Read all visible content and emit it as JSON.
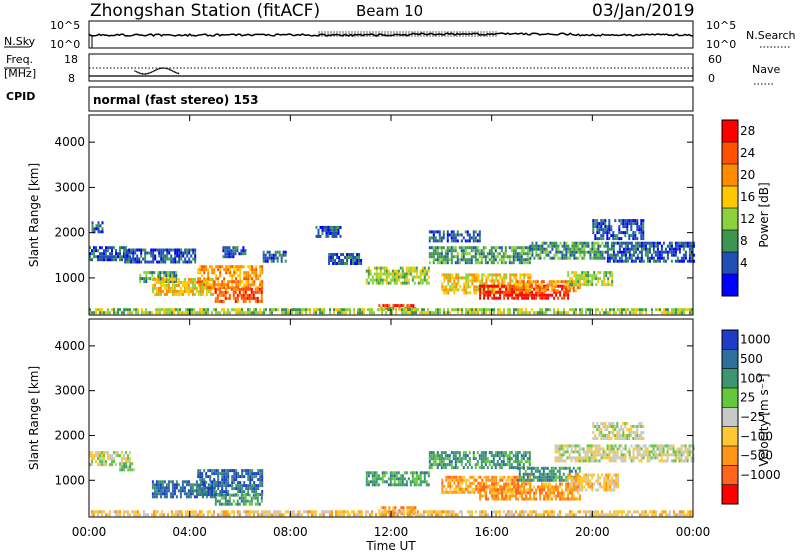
{
  "header": {
    "station": "Zhongshan Station (fitACF)",
    "beam": "Beam 10",
    "date": "03/Jan/2019"
  },
  "noise_panel": {
    "left_label": "N.Sky",
    "left_ticks": [
      "10^5",
      "10^0"
    ],
    "right_ticks": [
      "10^5",
      "10^0"
    ],
    "right_label": "N.Search"
  },
  "freq_panel": {
    "left_label_1": "Freq.",
    "left_label_2": "[MHz]",
    "left_ticks": [
      "18",
      "8"
    ],
    "right_ticks": [
      "60",
      "0"
    ],
    "right_label": "Nave"
  },
  "cpid": {
    "label": "CPID",
    "value": "normal (fast stereo) 153"
  },
  "chart_data": [
    {
      "type": "heatmap",
      "name": "power",
      "ylabel": "Slant Range [km]",
      "yticks": [
        "4000",
        "3000",
        "2000",
        "1000"
      ],
      "ylim": [
        180,
        4600
      ],
      "xlim": [
        0,
        24
      ],
      "colorbar_label": "Power [dB]",
      "colorbar_ticks": [
        "28",
        "24",
        "20",
        "16",
        "12",
        "8",
        "4"
      ],
      "colorbar_colors": [
        "#ff0000",
        "#ff5000",
        "#ff8c00",
        "#ffc800",
        "#8cd23c",
        "#3c9650",
        "#2050b4",
        "#0000ff"
      ],
      "regions": [
        {
          "t": [
            0.0,
            1.6
          ],
          "r": [
            1380,
            1700
          ],
          "level": 1
        },
        {
          "t": [
            0.1,
            0.5
          ],
          "r": [
            2050,
            2250
          ],
          "level": 1
        },
        {
          "t": [
            1.4,
            4.2
          ],
          "r": [
            1350,
            1650
          ],
          "level": 1
        },
        {
          "t": [
            2.0,
            3.5
          ],
          "r": [
            950,
            1150
          ],
          "level": 2
        },
        {
          "t": [
            2.5,
            5.0
          ],
          "r": [
            650,
            1000
          ],
          "level": 4
        },
        {
          "t": [
            4.3,
            6.9
          ],
          "r": [
            780,
            1280
          ],
          "level": 5
        },
        {
          "t": [
            5.0,
            6.9
          ],
          "r": [
            480,
            780
          ],
          "level": 6
        },
        {
          "t": [
            5.3,
            6.2
          ],
          "r": [
            1500,
            1700
          ],
          "level": 1
        },
        {
          "t": [
            6.9,
            7.8
          ],
          "r": [
            1350,
            1600
          ],
          "level": 1
        },
        {
          "t": [
            9.5,
            10.8
          ],
          "r": [
            1300,
            1550
          ],
          "level": 1
        },
        {
          "t": [
            9.0,
            10.0
          ],
          "r": [
            1900,
            2150
          ],
          "level": 1
        },
        {
          "t": [
            11.0,
            13.5
          ],
          "r": [
            900,
            1250
          ],
          "level": 3
        },
        {
          "t": [
            11.5,
            13.0
          ],
          "r": [
            320,
            420
          ],
          "level": 6
        },
        {
          "t": [
            13.5,
            17.5
          ],
          "r": [
            1350,
            1700
          ],
          "level": 2
        },
        {
          "t": [
            13.5,
            15.5
          ],
          "r": [
            1800,
            2050
          ],
          "level": 1
        },
        {
          "t": [
            14.0,
            17.5
          ],
          "r": [
            700,
            1100
          ],
          "level": 4
        },
        {
          "t": [
            15.5,
            19.0
          ],
          "r": [
            550,
            850
          ],
          "level": 7
        },
        {
          "t": [
            17.0,
            19.5
          ],
          "r": [
            700,
            950
          ],
          "level": 5
        },
        {
          "t": [
            17.5,
            20.5
          ],
          "r": [
            1450,
            1800
          ],
          "level": 2
        },
        {
          "t": [
            19.0,
            20.8
          ],
          "r": [
            850,
            1150
          ],
          "level": 3
        },
        {
          "t": [
            20.5,
            24.0
          ],
          "r": [
            1400,
            1800
          ],
          "level": 1
        },
        {
          "t": [
            20.0,
            22.0
          ],
          "r": [
            1900,
            2300
          ],
          "level": 1
        },
        {
          "t": [
            0.0,
            24.0
          ],
          "r": [
            200,
            330
          ],
          "level": 3
        }
      ]
    },
    {
      "type": "heatmap",
      "name": "velocity",
      "ylabel": "Slant Range [km]",
      "yticks": [
        "4000",
        "3000",
        "2000",
        "1000"
      ],
      "ylim": [
        180,
        4600
      ],
      "xlim": [
        0,
        24
      ],
      "xticks": [
        "00:00",
        "04:00",
        "08:00",
        "12:00",
        "16:00",
        "20:00",
        "00:00"
      ],
      "xlabel": "Time UT",
      "colorbar_label": "Velocity [m s⁻¹]",
      "colorbar_ticks": [
        "1000",
        "500",
        "100",
        "25",
        "−25",
        "−100",
        "−500",
        "−1000"
      ],
      "colorbar_colors": [
        "#1e3cc8",
        "#2d6e9b",
        "#3c966e",
        "#64c83c",
        "#c8c8c8",
        "#ffc832",
        "#ff9614",
        "#ff641e",
        "#ff0000"
      ],
      "regions": [
        {
          "t": [
            0.0,
            1.6
          ],
          "r": [
            1380,
            1650
          ],
          "level": 4
        },
        {
          "t": [
            1.2,
            1.8
          ],
          "r": [
            1200,
            1400
          ],
          "level": 5
        },
        {
          "t": [
            2.5,
            5.0
          ],
          "r": [
            650,
            1000
          ],
          "level": 7
        },
        {
          "t": [
            4.3,
            6.9
          ],
          "r": [
            650,
            1250
          ],
          "level": 7
        },
        {
          "t": [
            5.0,
            6.9
          ],
          "r": [
            480,
            700
          ],
          "level": 6
        },
        {
          "t": [
            11.0,
            13.5
          ],
          "r": [
            900,
            1200
          ],
          "level": 6
        },
        {
          "t": [
            11.5,
            13.0
          ],
          "r": [
            280,
            420
          ],
          "level": 2
        },
        {
          "t": [
            13.5,
            17.5
          ],
          "r": [
            1300,
            1650
          ],
          "level": 6
        },
        {
          "t": [
            14.0,
            17.5
          ],
          "r": [
            700,
            1100
          ],
          "level": 2
        },
        {
          "t": [
            15.5,
            19.5
          ],
          "r": [
            550,
            950
          ],
          "level": 2
        },
        {
          "t": [
            17.0,
            19.5
          ],
          "r": [
            1000,
            1300
          ],
          "level": 6
        },
        {
          "t": [
            19.0,
            21.0
          ],
          "r": [
            800,
            1150
          ],
          "level": 3
        },
        {
          "t": [
            18.5,
            24.0
          ],
          "r": [
            1450,
            1800
          ],
          "level": 4
        },
        {
          "t": [
            20.0,
            22.0
          ],
          "r": [
            1900,
            2300
          ],
          "level": 4
        },
        {
          "t": [
            0.0,
            24.0
          ],
          "r": [
            200,
            330
          ],
          "level": 3
        }
      ]
    }
  ]
}
